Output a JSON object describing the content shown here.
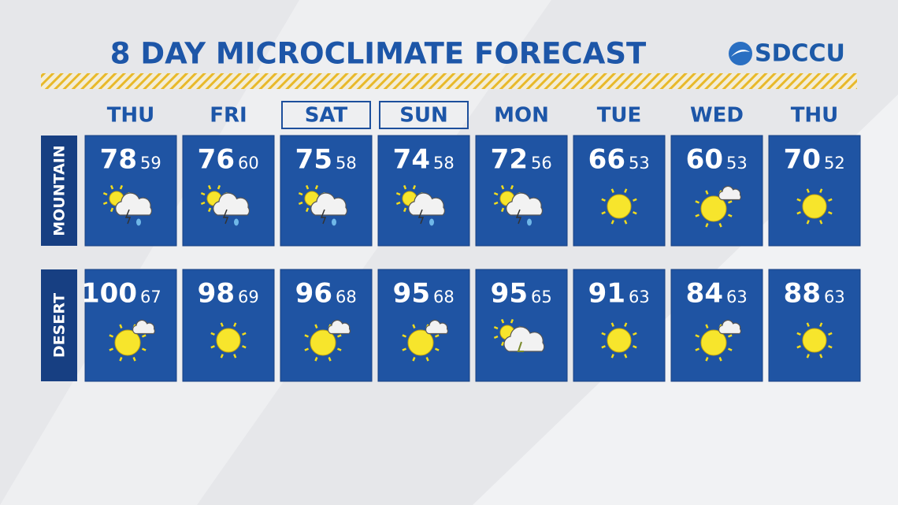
{
  "header": {
    "title": "8 DAY MICROCLIMATE FORECAST",
    "logo": "SDCCU"
  },
  "days": [
    {
      "label": "THU",
      "boxed": false
    },
    {
      "label": "FRI",
      "boxed": false
    },
    {
      "label": "SAT",
      "boxed": true
    },
    {
      "label": "SUN",
      "boxed": true
    },
    {
      "label": "MON",
      "boxed": false
    },
    {
      "label": "TUE",
      "boxed": false
    },
    {
      "label": "WED",
      "boxed": false
    },
    {
      "label": "THU",
      "boxed": false
    }
  ],
  "rows": [
    {
      "label": "MOUNTAIN",
      "cells": [
        {
          "high": 78,
          "low": 59,
          "icon": "storm"
        },
        {
          "high": 76,
          "low": 60,
          "icon": "storm"
        },
        {
          "high": 75,
          "low": 58,
          "icon": "storm"
        },
        {
          "high": 74,
          "low": 58,
          "icon": "storm"
        },
        {
          "high": 72,
          "low": 56,
          "icon": "storm"
        },
        {
          "high": 66,
          "low": 53,
          "icon": "sun"
        },
        {
          "high": 60,
          "low": 53,
          "icon": "sun-cloud"
        },
        {
          "high": 70,
          "low": 52,
          "icon": "sun"
        }
      ]
    },
    {
      "label": "DESERT",
      "cells": [
        {
          "high": 100,
          "low": 67,
          "icon": "sun-cloud"
        },
        {
          "high": 98,
          "low": 69,
          "icon": "sun"
        },
        {
          "high": 96,
          "low": 68,
          "icon": "sun-cloud"
        },
        {
          "high": 95,
          "low": 68,
          "icon": "sun-cloud"
        },
        {
          "high": 95,
          "low": 65,
          "icon": "cloud-lightning"
        },
        {
          "high": 91,
          "low": 63,
          "icon": "sun"
        },
        {
          "high": 84,
          "low": 63,
          "icon": "sun-cloud"
        },
        {
          "high": 88,
          "low": 63,
          "icon": "sun"
        }
      ]
    }
  ]
}
